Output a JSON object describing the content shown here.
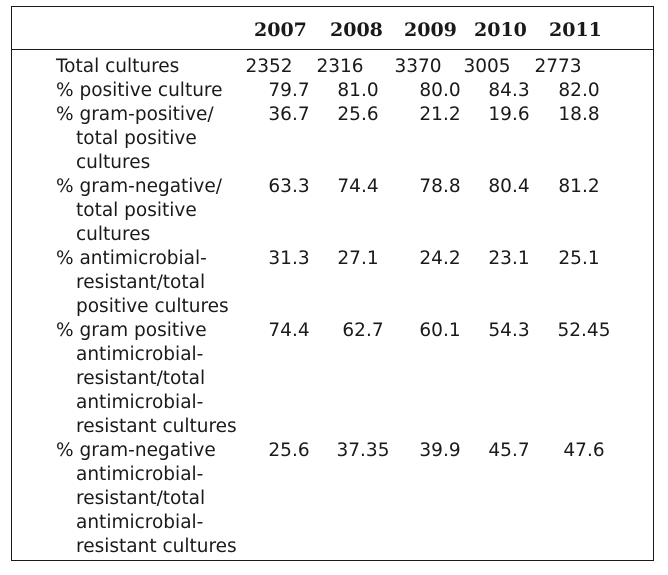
{
  "table": {
    "years": [
      "2007",
      "2008",
      "2009",
      "2010",
      "2011"
    ],
    "rows": [
      {
        "label_lines": [
          "Total cultures"
        ],
        "values": [
          "2352",
          "2316",
          "3370",
          "3005",
          "2773"
        ]
      },
      {
        "label_lines": [
          "% positive culture"
        ],
        "values": [
          "79.7",
          "81.0",
          "80.0",
          "84.3",
          "82.0"
        ]
      },
      {
        "label_lines": [
          "% gram-positive/",
          "total positive",
          "cultures"
        ],
        "values": [
          "36.7",
          "25.6",
          "21.2",
          "19.6",
          "18.8"
        ]
      },
      {
        "label_lines": [
          "% gram-negative/",
          "total positive",
          "cultures"
        ],
        "values": [
          "63.3",
          "74.4",
          "78.8",
          "80.4",
          "81.2"
        ]
      },
      {
        "label_lines": [
          "% antimicrobial-",
          "resistant/total",
          "positive cultures"
        ],
        "values": [
          "31.3",
          "27.1",
          "24.2",
          "23.1",
          "25.1"
        ]
      },
      {
        "label_lines": [
          "% gram positive",
          "antimicrobial-",
          "resistant/total",
          "antimicrobial-",
          "resistant cultures"
        ],
        "values": [
          "74.4",
          "62.7",
          "60.1",
          "54.3",
          "52.45"
        ]
      },
      {
        "label_lines": [
          "% gram-negative",
          "antimicrobial-",
          "resistant/total",
          "antimicrobial-",
          "resistant cultures"
        ],
        "values": [
          "25.6",
          "37.35",
          "39.9",
          "45.7",
          "47.6"
        ]
      }
    ]
  }
}
